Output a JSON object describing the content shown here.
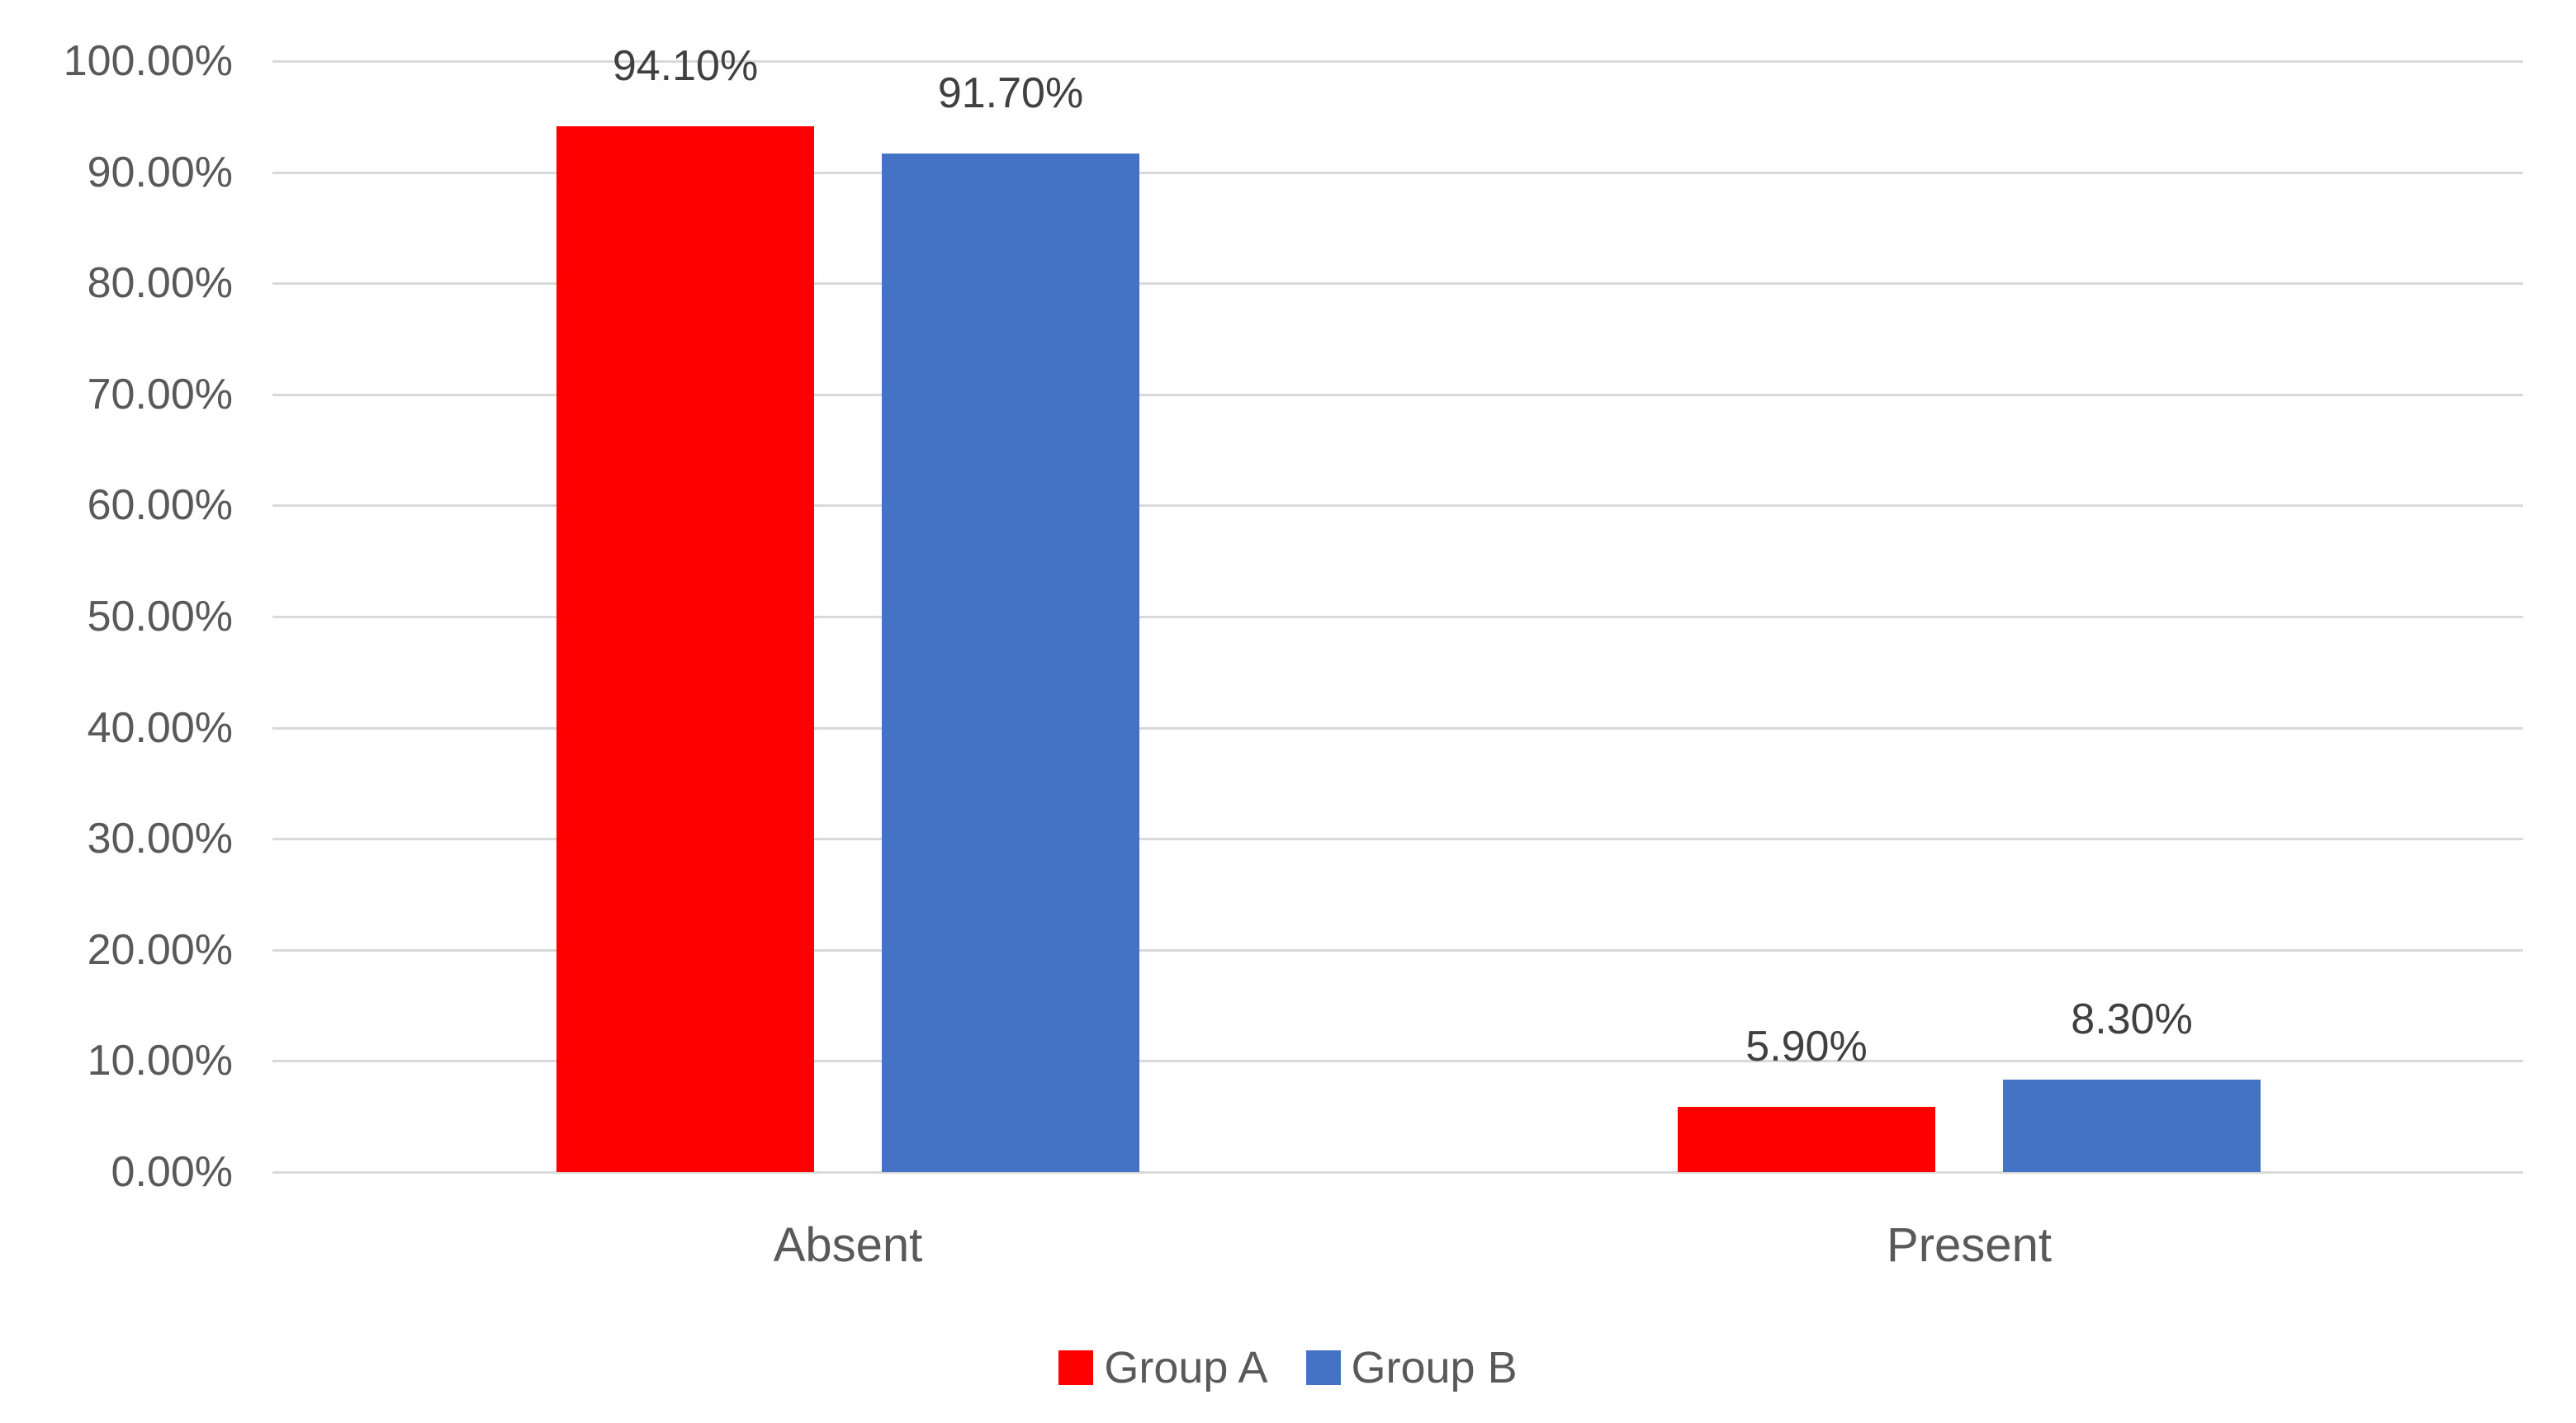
{
  "chart_data": {
    "type": "bar",
    "title": "",
    "categories": [
      "Absent",
      "Present"
    ],
    "series": [
      {
        "name": "Group A",
        "color": "#ff0000",
        "values": [
          94.1,
          5.9
        ],
        "data_labels": [
          "94.10%",
          "5.90%"
        ]
      },
      {
        "name": "Group B",
        "color": "#4472c4",
        "values": [
          91.7,
          8.3
        ],
        "data_labels": [
          "91.70%",
          "8.30%"
        ]
      }
    ],
    "y_axis": {
      "min": 0,
      "max": 100,
      "step": 10,
      "tick_labels": [
        "0.00%",
        "10.00%",
        "20.00%",
        "30.00%",
        "40.00%",
        "50.00%",
        "60.00%",
        "70.00%",
        "80.00%",
        "90.00%",
        "100.00%"
      ],
      "format": "percent"
    },
    "x_axis": {
      "labels": [
        "Absent",
        "Present"
      ]
    },
    "grid": true,
    "legend": {
      "position": "bottom",
      "entries": [
        {
          "label": "Group A",
          "color": "#ff0000"
        },
        {
          "label": "Group B",
          "color": "#4472c4"
        }
      ]
    },
    "background": "#ffffff",
    "gridline_color": "#d9d9d9",
    "axis_text_color": "#595959",
    "data_label_color": "#404040"
  }
}
